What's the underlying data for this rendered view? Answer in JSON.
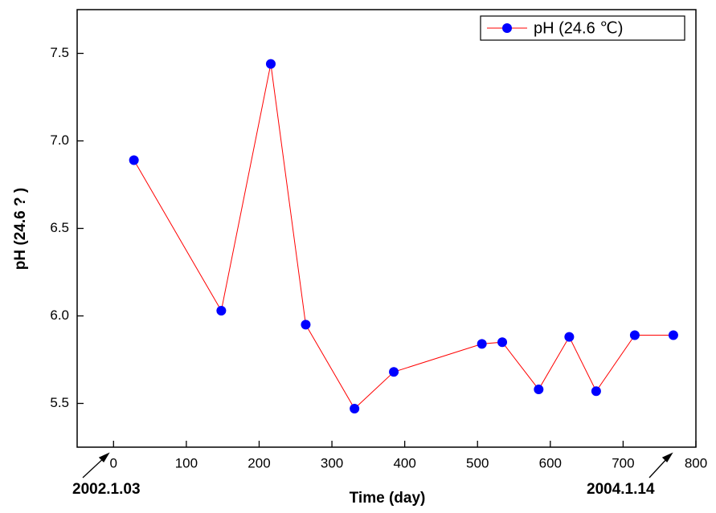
{
  "chart_data": {
    "type": "line",
    "x_label": "Time (day)",
    "y_label": "pH (24.6 ? )",
    "x": [
      28,
      148,
      216,
      264,
      331,
      385,
      506,
      534,
      584,
      626,
      663,
      716,
      769
    ],
    "series": [
      {
        "name": "pH (24.6 ℃)",
        "color": "#ff0000",
        "marker_color": "#0000ff",
        "values": [
          6.89,
          6.03,
          7.44,
          5.95,
          5.47,
          5.68,
          5.84,
          5.85,
          5.58,
          5.88,
          5.57,
          5.89,
          5.89
        ]
      }
    ],
    "xlim": [
      -50,
      800
    ],
    "xticks": [
      0,
      100,
      200,
      300,
      400,
      500,
      600,
      700,
      800
    ],
    "ylim": [
      5.25,
      7.75
    ],
    "yticks": [
      5.5,
      {
        "value": 6,
        "label": "6.0"
      },
      6.5,
      {
        "value": 7,
        "label": "7.0"
      },
      7.5
    ],
    "annotations": [
      "2002.1.03",
      "2004.1.14"
    ],
    "legend": "top-right",
    "grid": false
  }
}
